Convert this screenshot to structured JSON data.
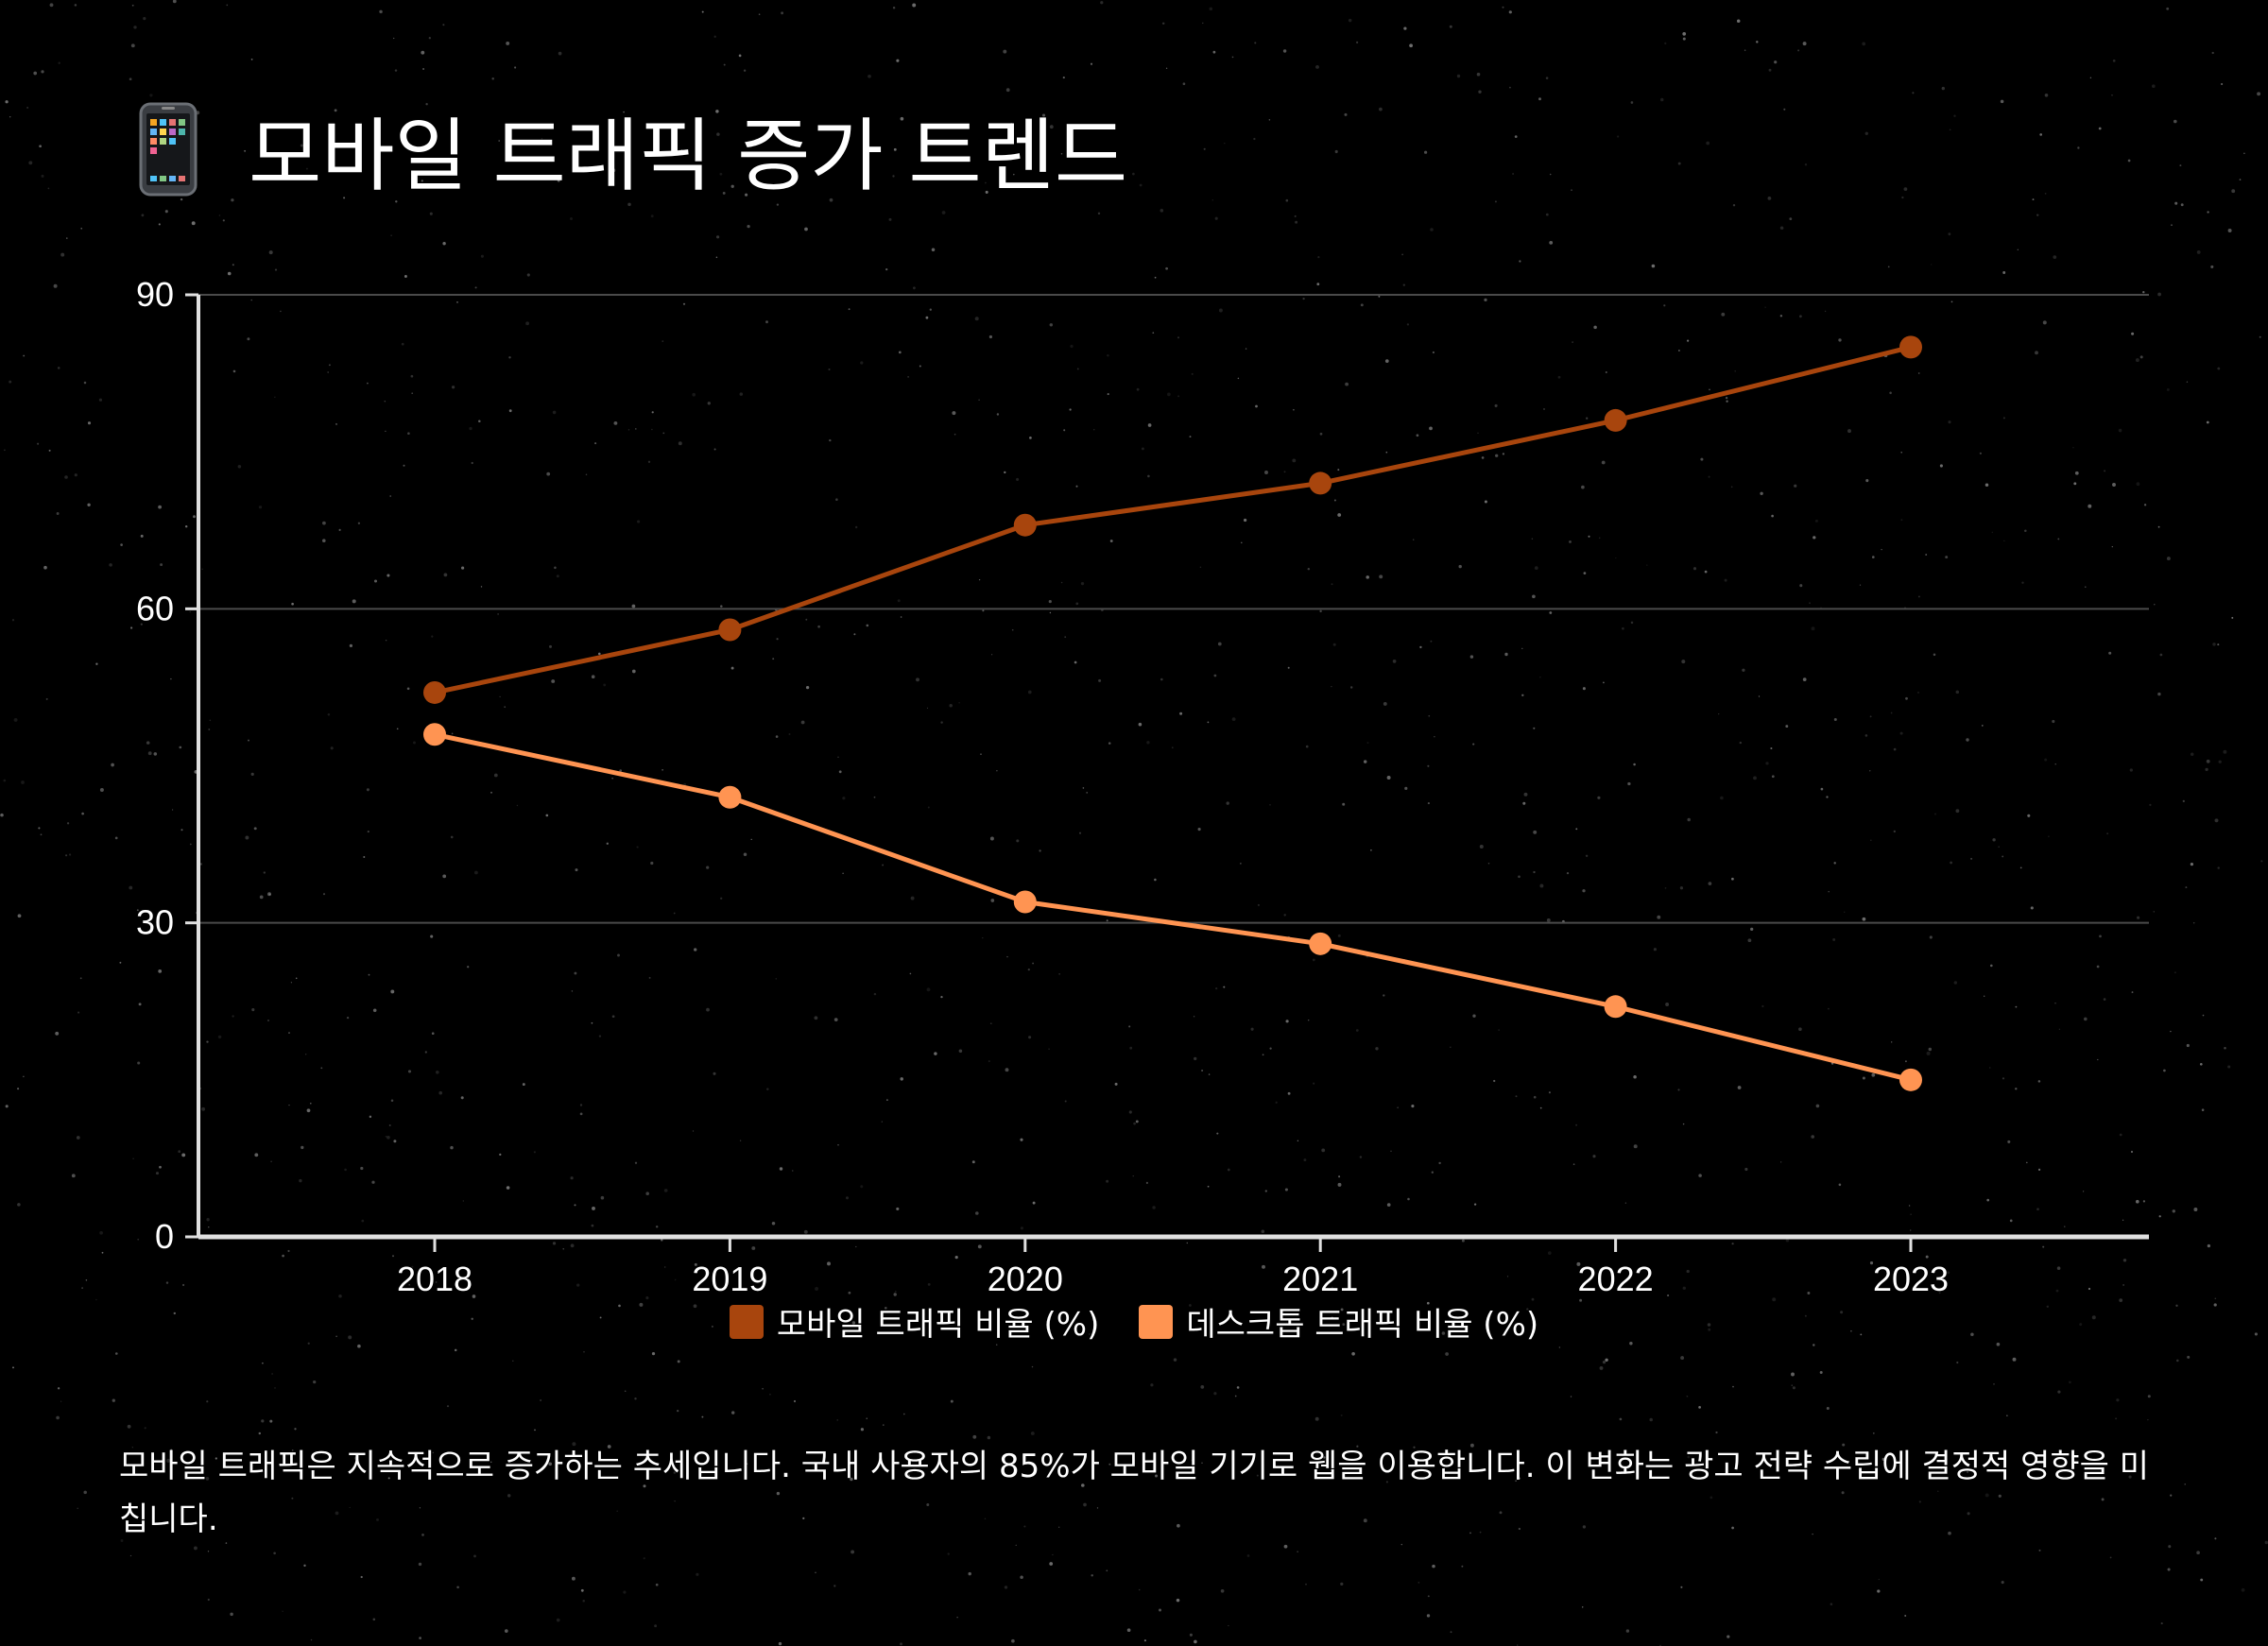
{
  "page": {
    "title": "모바일 트래픽 증가 트렌드",
    "title_icon": "mobile-phone-icon",
    "background": "#000000",
    "description": "모바일 트래픽은 지속적으로 증가하는 추세입니다. 국내 사용자의 85%가 모바일 기기로 웹을 이용합니다. 이 변화는 광고 전략 수립에 결정적 영향을 미칩니다."
  },
  "chart_data": {
    "type": "line",
    "title": "",
    "xlabel": "",
    "ylabel": "",
    "categories": [
      "2018",
      "2019",
      "2020",
      "2021",
      "2022",
      "2023"
    ],
    "y_ticks": [
      "0",
      "30",
      "60",
      "90"
    ],
    "ylim": [
      0,
      90
    ],
    "grid": true,
    "legend_position": "bottom-center",
    "series": [
      {
        "name": "모바일 트래픽 비율 (%)",
        "color": "#a8450d",
        "values": [
          52,
          58,
          68,
          72,
          78,
          85
        ]
      },
      {
        "name": "데스크톱 트래픽 비율 (%)",
        "color": "#ff9452",
        "values": [
          48,
          42,
          32,
          28,
          22,
          15
        ]
      }
    ]
  }
}
